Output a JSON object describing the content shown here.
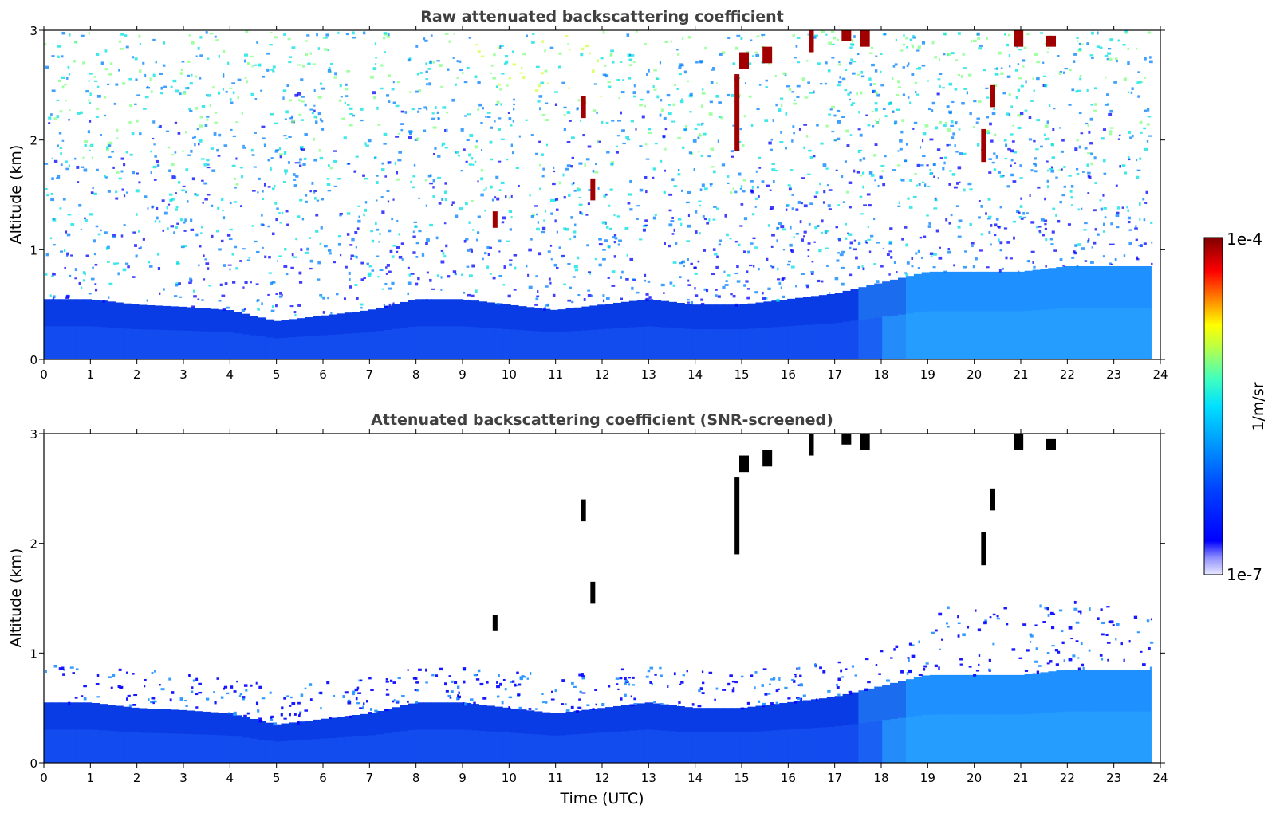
{
  "chart_data": [
    {
      "type": "heatmap",
      "title": "Raw attenuated backscattering coefficient",
      "ylabel": "Altitude (km)",
      "xlabel": "",
      "xlim": [
        0,
        24
      ],
      "ylim": [
        0,
        3
      ],
      "xticks": [
        "0",
        "1",
        "2",
        "3",
        "4",
        "5",
        "6",
        "7",
        "8",
        "9",
        "10",
        "11",
        "12",
        "13",
        "14",
        "15",
        "16",
        "17",
        "18",
        "19",
        "20",
        "21",
        "22",
        "23",
        "24"
      ],
      "yticks": [
        "0",
        "1",
        "2",
        "3"
      ],
      "layers": [
        {
          "kind": "boundary_layer",
          "x": [
            0,
            1,
            2,
            3,
            4,
            5,
            6,
            7,
            8,
            9,
            10,
            11,
            12,
            13,
            14,
            15,
            16,
            17,
            18,
            19,
            20,
            21,
            22,
            23,
            23.8
          ],
          "top_km": [
            0.55,
            0.55,
            0.5,
            0.48,
            0.45,
            0.35,
            0.4,
            0.45,
            0.55,
            0.55,
            0.5,
            0.45,
            0.5,
            0.55,
            0.5,
            0.5,
            0.55,
            0.6,
            0.7,
            0.8,
            0.8,
            0.8,
            0.85,
            0.85,
            0.85
          ]
        },
        {
          "kind": "noise_region",
          "x": [
            0,
            24
          ],
          "y": [
            0.6,
            3
          ]
        }
      ],
      "clouds": [
        {
          "t": 9.7,
          "alt": [
            1.2,
            1.35
          ]
        },
        {
          "t": 11.6,
          "alt": [
            2.2,
            2.4
          ]
        },
        {
          "t": 11.8,
          "alt": [
            1.45,
            1.65
          ]
        },
        {
          "t": 14.9,
          "alt": [
            1.9,
            2.6
          ]
        },
        {
          "t": 15.0,
          "alt": [
            2.65,
            2.8
          ]
        },
        {
          "t": 15.5,
          "alt": [
            2.7,
            2.85
          ]
        },
        {
          "t": 16.5,
          "alt": [
            2.8,
            3.0
          ]
        },
        {
          "t": 17.2,
          "alt": [
            2.9,
            3.0
          ]
        },
        {
          "t": 17.6,
          "alt": [
            2.85,
            3.0
          ]
        },
        {
          "t": 20.2,
          "alt": [
            1.8,
            2.1
          ]
        },
        {
          "t": 20.4,
          "alt": [
            2.3,
            2.5
          ]
        },
        {
          "t": 20.9,
          "alt": [
            2.85,
            3.0
          ]
        },
        {
          "t": 21.6,
          "alt": [
            2.85,
            2.95
          ]
        }
      ]
    },
    {
      "type": "heatmap",
      "title": "Attenuated backscattering coefficient (SNR-screened)",
      "ylabel": "Altitude (km)",
      "xlabel": "Time (UTC)",
      "xlim": [
        0,
        24
      ],
      "ylim": [
        0,
        3
      ],
      "xticks": [
        "0",
        "1",
        "2",
        "3",
        "4",
        "5",
        "6",
        "7",
        "8",
        "9",
        "10",
        "11",
        "12",
        "13",
        "14",
        "15",
        "16",
        "17",
        "18",
        "19",
        "20",
        "21",
        "22",
        "23",
        "24"
      ],
      "yticks": [
        "0",
        "1",
        "2",
        "3"
      ]
    }
  ],
  "colorbar": {
    "label": "1/m/sr",
    "max_label": "1e-4",
    "min_label": "1e-7",
    "colormap": [
      "#e8e8ff",
      "#b0b0ff",
      "#6060ff",
      "#0000ff",
      "#0040ff",
      "#0080ff",
      "#00c0ff",
      "#00ffff",
      "#40ffc0",
      "#80ff80",
      "#c0ff40",
      "#ffff00",
      "#ffc000",
      "#ff8000",
      "#ff4000",
      "#ff0000",
      "#c00000",
      "#800000"
    ]
  }
}
